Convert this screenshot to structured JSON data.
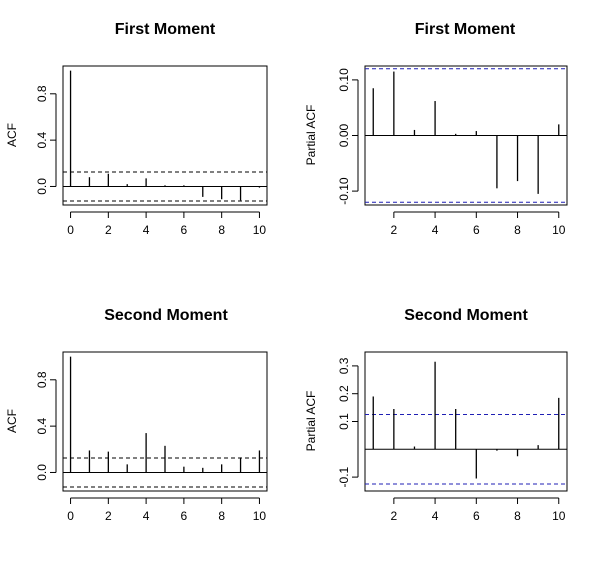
{
  "colors": {
    "stick": "#000000",
    "ci_left": "#000000",
    "ci_right": "#1f1fb4"
  },
  "chart_data": [
    {
      "type": "bar",
      "subtype": "acf",
      "title": "First Moment",
      "xlabel": "",
      "ylabel": "ACF",
      "x": [
        0,
        1,
        2,
        3,
        4,
        5,
        6,
        7,
        8,
        9,
        10
      ],
      "values": [
        1.0,
        0.08,
        0.11,
        0.02,
        0.07,
        0.01,
        0.01,
        -0.09,
        -0.11,
        -0.12,
        -0.01
      ],
      "ci": 0.125,
      "zero_line": true,
      "xlim": [
        -0.4,
        10.4
      ],
      "ylim": [
        -0.16,
        1.04
      ],
      "xticks": [
        0,
        2,
        4,
        6,
        8,
        10
      ],
      "yticks": [
        0.0,
        0.4,
        0.8
      ],
      "ytick_labels": [
        "0.0",
        "0.4",
        "0.8"
      ]
    },
    {
      "type": "bar",
      "subtype": "pacf",
      "title": "First Moment",
      "xlabel": "",
      "ylabel": "Partial ACF",
      "x": [
        1,
        2,
        3,
        4,
        5,
        6,
        7,
        8,
        9,
        10
      ],
      "values": [
        0.085,
        0.115,
        0.01,
        0.062,
        0.003,
        0.008,
        -0.095,
        -0.082,
        -0.105,
        0.02
      ],
      "ci": 0.12,
      "zero_line": true,
      "xlim": [
        0.6,
        10.4
      ],
      "ylim": [
        -0.125,
        0.125
      ],
      "xticks": [
        2,
        4,
        6,
        8,
        10
      ],
      "yticks": [
        -0.1,
        0.0,
        0.1
      ],
      "ytick_labels": [
        "-0.10",
        "0.00",
        "0.10"
      ]
    },
    {
      "type": "bar",
      "subtype": "acf",
      "title": "Second Moment",
      "xlabel": "",
      "ylabel": "ACF",
      "x": [
        0,
        1,
        2,
        3,
        4,
        5,
        6,
        7,
        8,
        9,
        10
      ],
      "values": [
        1.0,
        0.19,
        0.18,
        0.07,
        0.34,
        0.23,
        0.05,
        0.04,
        0.07,
        0.13,
        0.19
      ],
      "ci": 0.125,
      "zero_line": true,
      "xlim": [
        -0.4,
        10.4
      ],
      "ylim": [
        -0.16,
        1.04
      ],
      "xticks": [
        0,
        2,
        4,
        6,
        8,
        10
      ],
      "yticks": [
        0.0,
        0.4,
        0.8
      ],
      "ytick_labels": [
        "0.0",
        "0.4",
        "0.8"
      ]
    },
    {
      "type": "bar",
      "subtype": "pacf",
      "title": "Second Moment",
      "xlabel": "",
      "ylabel": "Partial ACF",
      "x": [
        1,
        2,
        3,
        4,
        5,
        6,
        7,
        8,
        9,
        10
      ],
      "values": [
        0.19,
        0.145,
        0.01,
        0.315,
        0.145,
        -0.105,
        -0.005,
        -0.025,
        0.015,
        0.185
      ],
      "ci": 0.125,
      "zero_line": true,
      "xlim": [
        0.6,
        10.4
      ],
      "ylim": [
        -0.15,
        0.35
      ],
      "xticks": [
        2,
        4,
        6,
        8,
        10
      ],
      "yticks": [
        -0.1,
        0.1,
        0.2,
        0.3
      ],
      "ytick_labels": [
        "-0.1",
        "0.1",
        "0.2",
        "0.3"
      ]
    }
  ]
}
